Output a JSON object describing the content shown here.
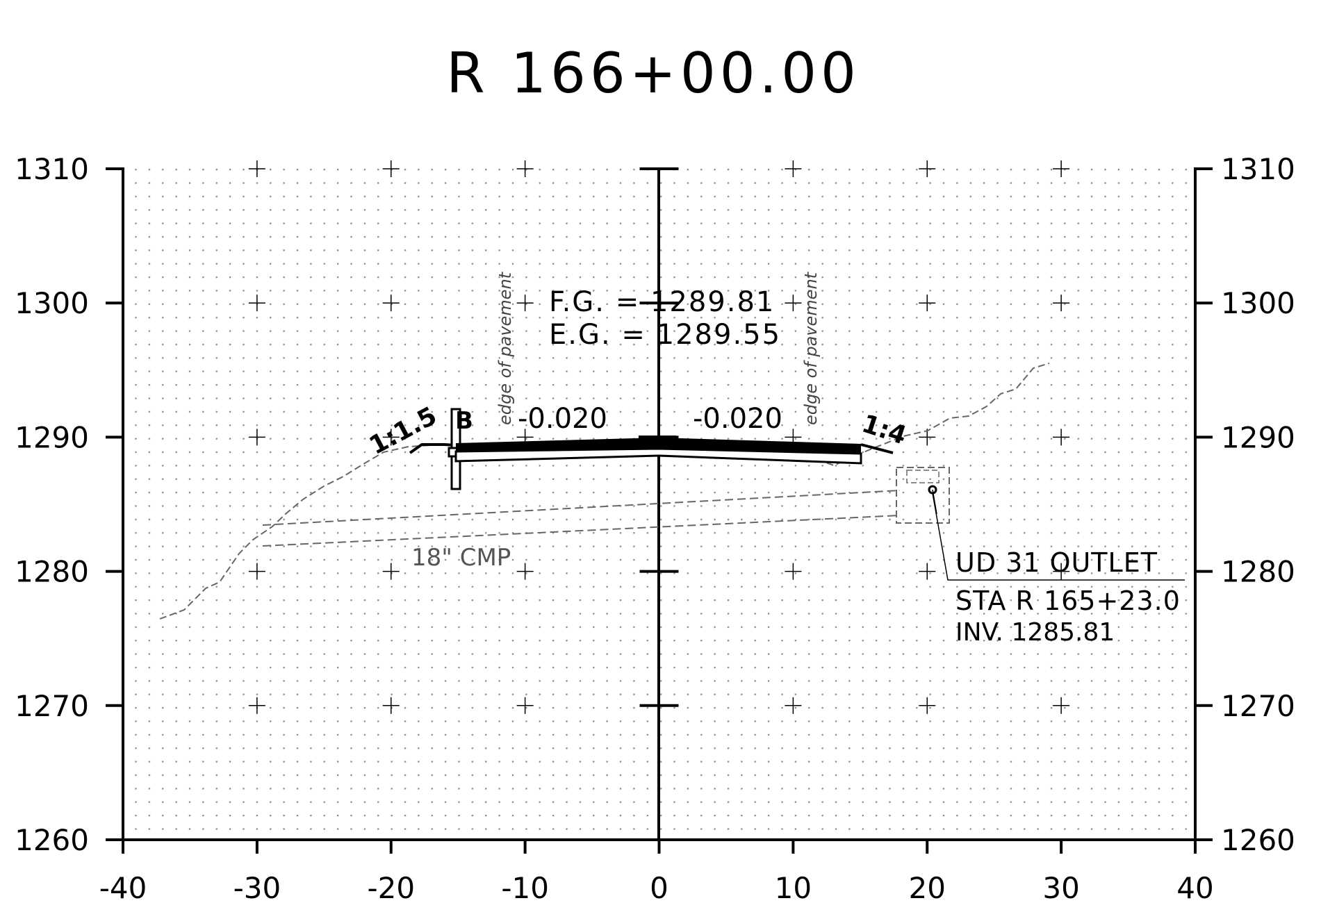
{
  "title": "R 166+00.00",
  "axes": {
    "x_ticks": [
      "-40",
      "-30",
      "-20",
      "-10",
      "0",
      "10",
      "20",
      "30",
      "40"
    ],
    "y_ticks_left": [
      "1310",
      "1300",
      "1290",
      "1280",
      "1270",
      "1260"
    ],
    "y_ticks_right": [
      "1310",
      "1300",
      "1290",
      "1280",
      "1270",
      "1260"
    ],
    "xlim": [
      -40,
      40
    ],
    "ylim": [
      1260,
      1310
    ]
  },
  "grades": {
    "fg": "F.G. = 1289.81",
    "eg": "E.G. = 1289.55"
  },
  "slopes": {
    "left_cross": "-0.020",
    "right_cross": "-0.020",
    "left_side": "1:1.5",
    "right_side": "1:4",
    "barrier_mark": "B"
  },
  "notes": {
    "edge_left": "edge of pavement",
    "edge_right": "edge of pavement",
    "pipe": "18\" CMP"
  },
  "callout": {
    "line1": "UD 31 OUTLET",
    "line2": "STA R 165+23.0",
    "line3": "INV. 1285.81"
  },
  "colors": {
    "ink": "#000000",
    "grid": "#9a9a9a",
    "existing_ground": "#666666"
  }
}
